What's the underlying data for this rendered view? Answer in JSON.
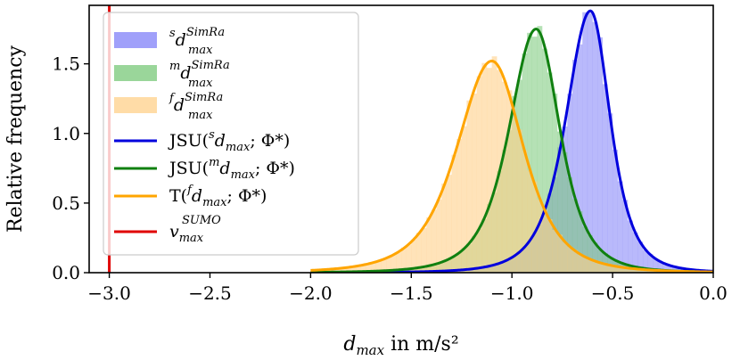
{
  "chart_data": {
    "type": "histogram",
    "xlabel": "d_max in m/s²",
    "ylabel": "Relative frequency",
    "xlim": [
      -3.1,
      0.0
    ],
    "ylim": [
      0.0,
      1.92
    ],
    "xticks": [
      -3.0,
      -2.5,
      -2.0,
      -1.5,
      -1.0,
      -0.5,
      0.0
    ],
    "yticks": [
      0.0,
      0.5,
      1.0,
      1.5
    ],
    "xtick_labels": [
      "−3.0",
      "−2.5",
      "−2.0",
      "−1.5",
      "−1.0",
      "−0.5",
      "0.0"
    ],
    "ytick_labels": [
      "0.0",
      "0.5",
      "1.0",
      "1.5"
    ],
    "legend_position": "top-left",
    "series": [
      {
        "name": "s d max SimRa",
        "kind": "histogram",
        "color": "#8080f8",
        "opacity": 0.55,
        "fit": {
          "name": "JSU(s d max; Φ*)",
          "color": "#0000dd",
          "mode": -0.61,
          "peak": 1.88,
          "sigma_left": 0.155,
          "sigma_right": 0.125,
          "x_start": -2.0,
          "x_end": 0.0
        }
      },
      {
        "name": "m d max SimRa",
        "kind": "histogram",
        "color": "#78c878",
        "opacity": 0.55,
        "fit": {
          "name": "JSU(m d max; Φ*)",
          "color": "#108010",
          "mode": -0.88,
          "peak": 1.75,
          "sigma_left": 0.17,
          "sigma_right": 0.15,
          "x_start": -2.0,
          "x_end": 0.0
        }
      },
      {
        "name": "f d max SimRa",
        "kind": "histogram",
        "color": "#ffd08a",
        "opacity": 0.6,
        "fit": {
          "name": "T(f d max; Φ*)",
          "color": "#ffa500",
          "mode": -1.1,
          "peak": 1.52,
          "sigma_left": 0.22,
          "sigma_right": 0.2,
          "x_start": -2.0,
          "x_end": 0.0
        }
      },
      {
        "name": "v max SUMO",
        "kind": "vline",
        "color": "#e00000",
        "x": -3.0
      }
    ],
    "legend": [
      {
        "kind": "patch",
        "color": "#8080f8",
        "sup": "s",
        "base": "d",
        "sub": "max",
        "supr": "SimRa"
      },
      {
        "kind": "patch",
        "color": "#78c878",
        "sup": "m",
        "base": "d",
        "sub": "max",
        "supr": "SimRa"
      },
      {
        "kind": "patch",
        "color": "#ffd08a",
        "sup": "f",
        "base": "d",
        "sub": "max",
        "supr": "SimRa"
      },
      {
        "kind": "line",
        "color": "#0000dd",
        "pre": "JSU(",
        "sup": "s",
        "base": "d",
        "sub": "max",
        "post": "; Φ*)"
      },
      {
        "kind": "line",
        "color": "#108010",
        "pre": "JSU(",
        "sup": "m",
        "base": "d",
        "sub": "max",
        "post": "; Φ*)"
      },
      {
        "kind": "line",
        "color": "#ffa500",
        "pre": "T(",
        "sup": "f",
        "base": "d",
        "sub": "max",
        "post": "; Φ*)"
      },
      {
        "kind": "line",
        "color": "#e00000",
        "pre": "",
        "sup": "",
        "base": "v",
        "sub": "max",
        "supr": "SUMO",
        "post": ""
      }
    ]
  }
}
